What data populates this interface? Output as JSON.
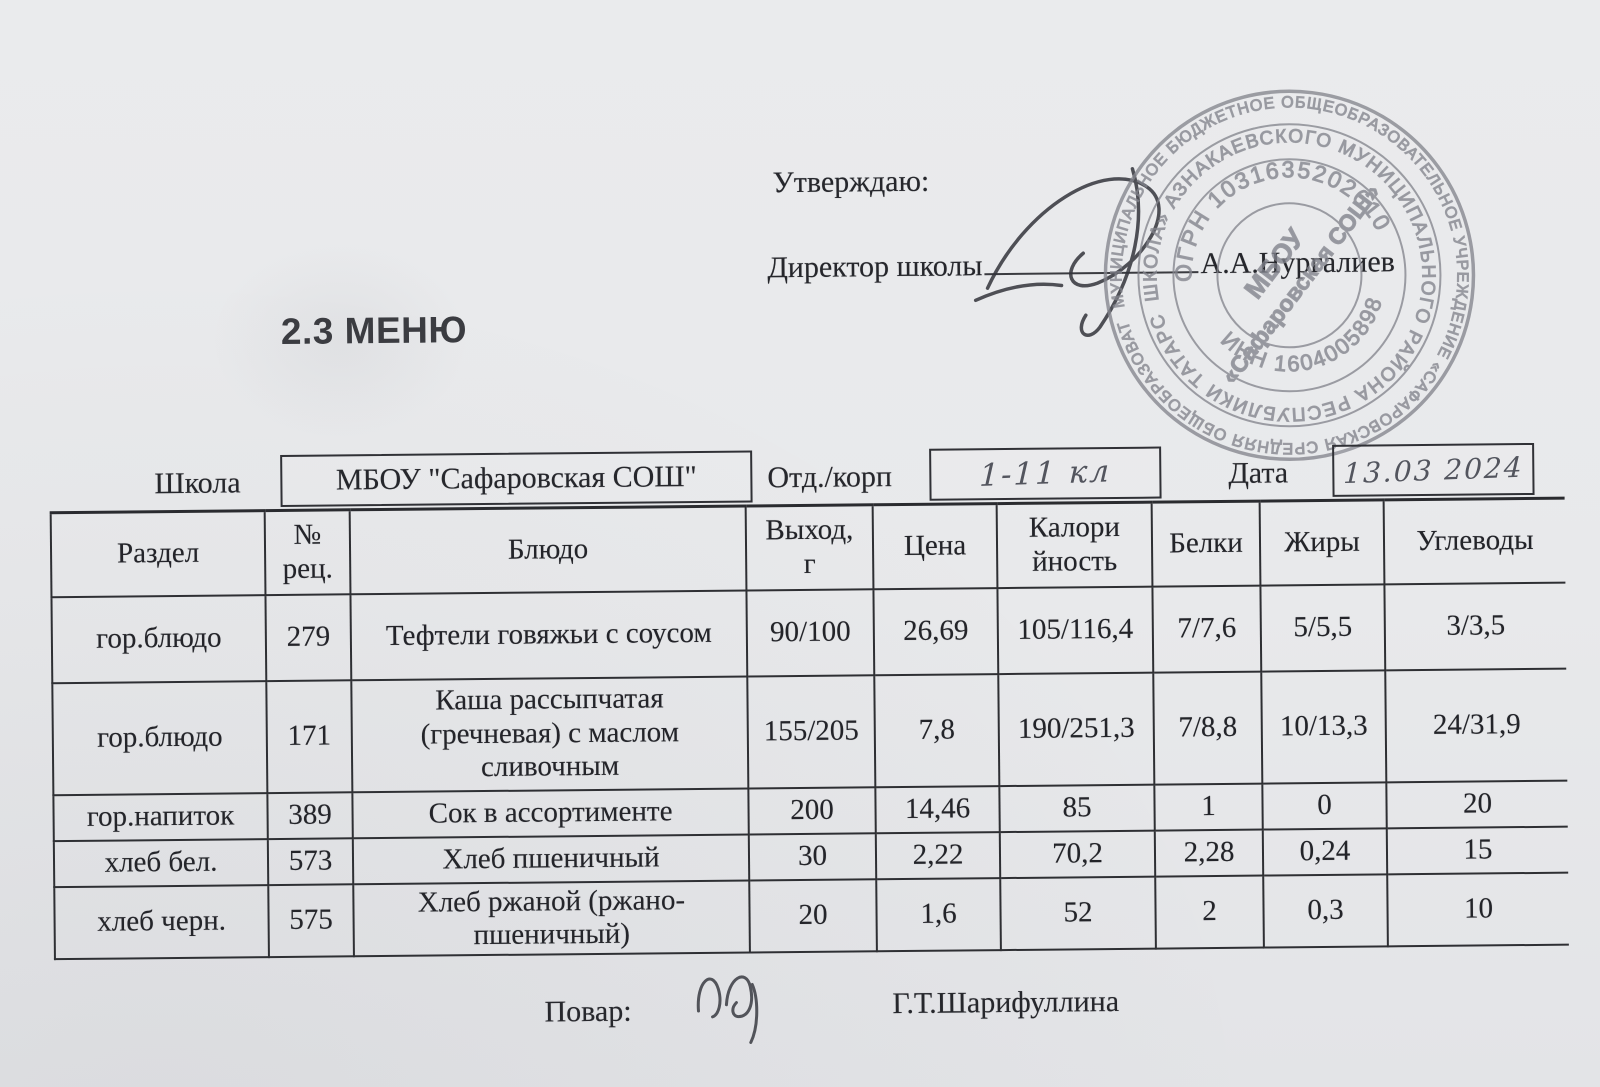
{
  "colors": {
    "paper": "#e9eaec",
    "ink": "#26272c",
    "stamp": "#85868e"
  },
  "header": {
    "approve": "Утверждаю:",
    "director_label": "Директор школы",
    "director_name": "А.А.Нургалиев"
  },
  "stamp": {
    "ring_outer": "МУНИЦИПАЛЬНОЕ БЮДЖЕТНОЕ ОБЩЕОБРАЗОВАТЕЛЬНОЕ УЧРЕЖДЕНИЕ «САФАРОВСКАЯ СРЕДНЯЯ ОБЩЕОБРАЗОВАТЕЛЬНАЯ",
    "ring_inner": "ШКОЛА» АЗНАКАЕВСКОГО МУНИЦИПАЛЬНОГО РАЙОНА РЕСПУБЛИКИ ТАТАРСТАН ★ ★",
    "ogrn": "ОГРН 1031635202610",
    "inn": "ИНН 1604005898",
    "center_line1": "МБОУ",
    "center_line2": "«Сафаровская СОШ»"
  },
  "title": "2.3 МЕНЮ",
  "form": {
    "school_label": "Школа",
    "school_value": "МБОУ \"Сафаровская СОШ\"",
    "dept_label": "Отд./корп",
    "dept_value": "1-11 кл",
    "date_label": "Дата",
    "date_value": "13.03 2024"
  },
  "table": {
    "headers": [
      "Раздел",
      "№\nрец.",
      "Блюдо",
      "Выход,\nг",
      "Цена",
      "Калори\nйность",
      "Белки",
      "Жиры",
      "Углеводы"
    ],
    "rows": [
      [
        "гор.блюдо",
        "279",
        "Тефтели говяжьи с соусом",
        "90/100",
        "26,69",
        "105/116,4",
        "7/7,6",
        "5/5,5",
        "3/3,5"
      ],
      [
        "гор.блюдо",
        "171",
        "Каша рассыпчатая (гречневая) с маслом сливочным",
        "155/205",
        "7,8",
        "190/251,3",
        "7/8,8",
        "10/13,3",
        "24/31,9"
      ],
      [
        "гор.напиток",
        "389",
        "Сок в ассортименте",
        "200",
        "14,46",
        "85",
        "1",
        "0",
        "20"
      ],
      [
        "хлеб бел.",
        "573",
        "Хлеб пшеничный",
        "30",
        "2,22",
        "70,2",
        "2,28",
        "0,24",
        "15"
      ],
      [
        "хлеб черн.",
        "575",
        "Хлеб ржаной (ржано-пшеничный)",
        "20",
        "1,6",
        "52",
        "2",
        "0,3",
        "10"
      ]
    ]
  },
  "footer": {
    "cook_label": "Повар:",
    "cook_name": "Г.Т.Шарифуллина"
  }
}
